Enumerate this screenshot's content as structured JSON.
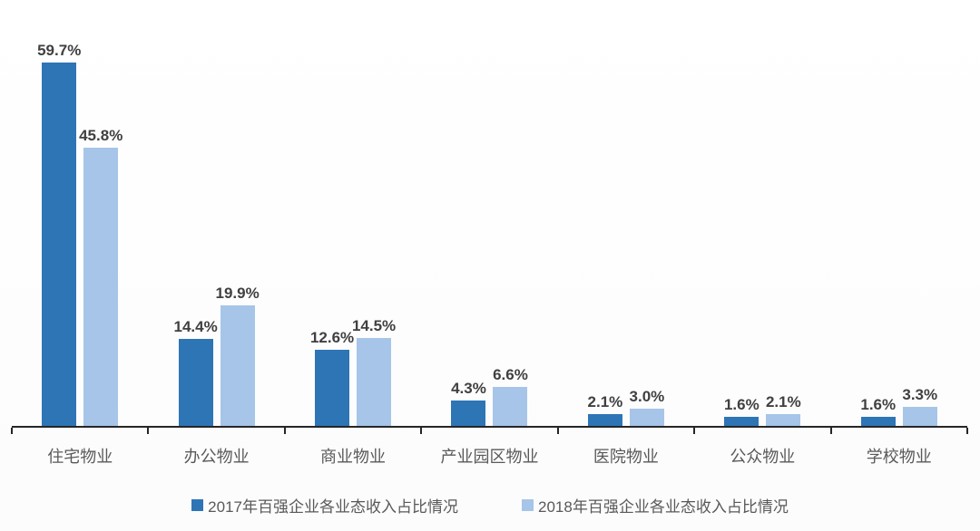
{
  "chart_data": {
    "type": "bar",
    "categories": [
      "住宅物业",
      "办公物业",
      "商业物业",
      "产业园区物业",
      "医院物业",
      "公众物业",
      "学校物业"
    ],
    "series": [
      {
        "name": "2017年百强企业各业态收入占比情况",
        "color": "#2E75B6",
        "values": [
          59.7,
          14.4,
          12.6,
          4.3,
          2.1,
          1.6,
          1.6
        ]
      },
      {
        "name": "2018年百强企业各业态收入占比情况",
        "color": "#A6C5E8",
        "values": [
          45.8,
          19.9,
          14.5,
          6.6,
          3.0,
          2.1,
          3.3
        ]
      }
    ],
    "data_labels": [
      [
        "59.7%",
        "14.4%",
        "12.6%",
        "4.3%",
        "2.1%",
        "1.6%",
        "1.6%"
      ],
      [
        "45.8%",
        "19.9%",
        "14.5%",
        "6.6%",
        "3.0%",
        "2.1%",
        "3.3%"
      ]
    ],
    "title": "",
    "xlabel": "",
    "ylabel": "",
    "ylim": [
      0,
      62.4
    ],
    "grid": false,
    "legend_position": "bottom",
    "value_unit": "%"
  },
  "style": {
    "axis_color": "#262626",
    "label_color": "#404040",
    "category_color": "#595959",
    "legend_text_color": "#595959",
    "background": "#ffffff"
  }
}
